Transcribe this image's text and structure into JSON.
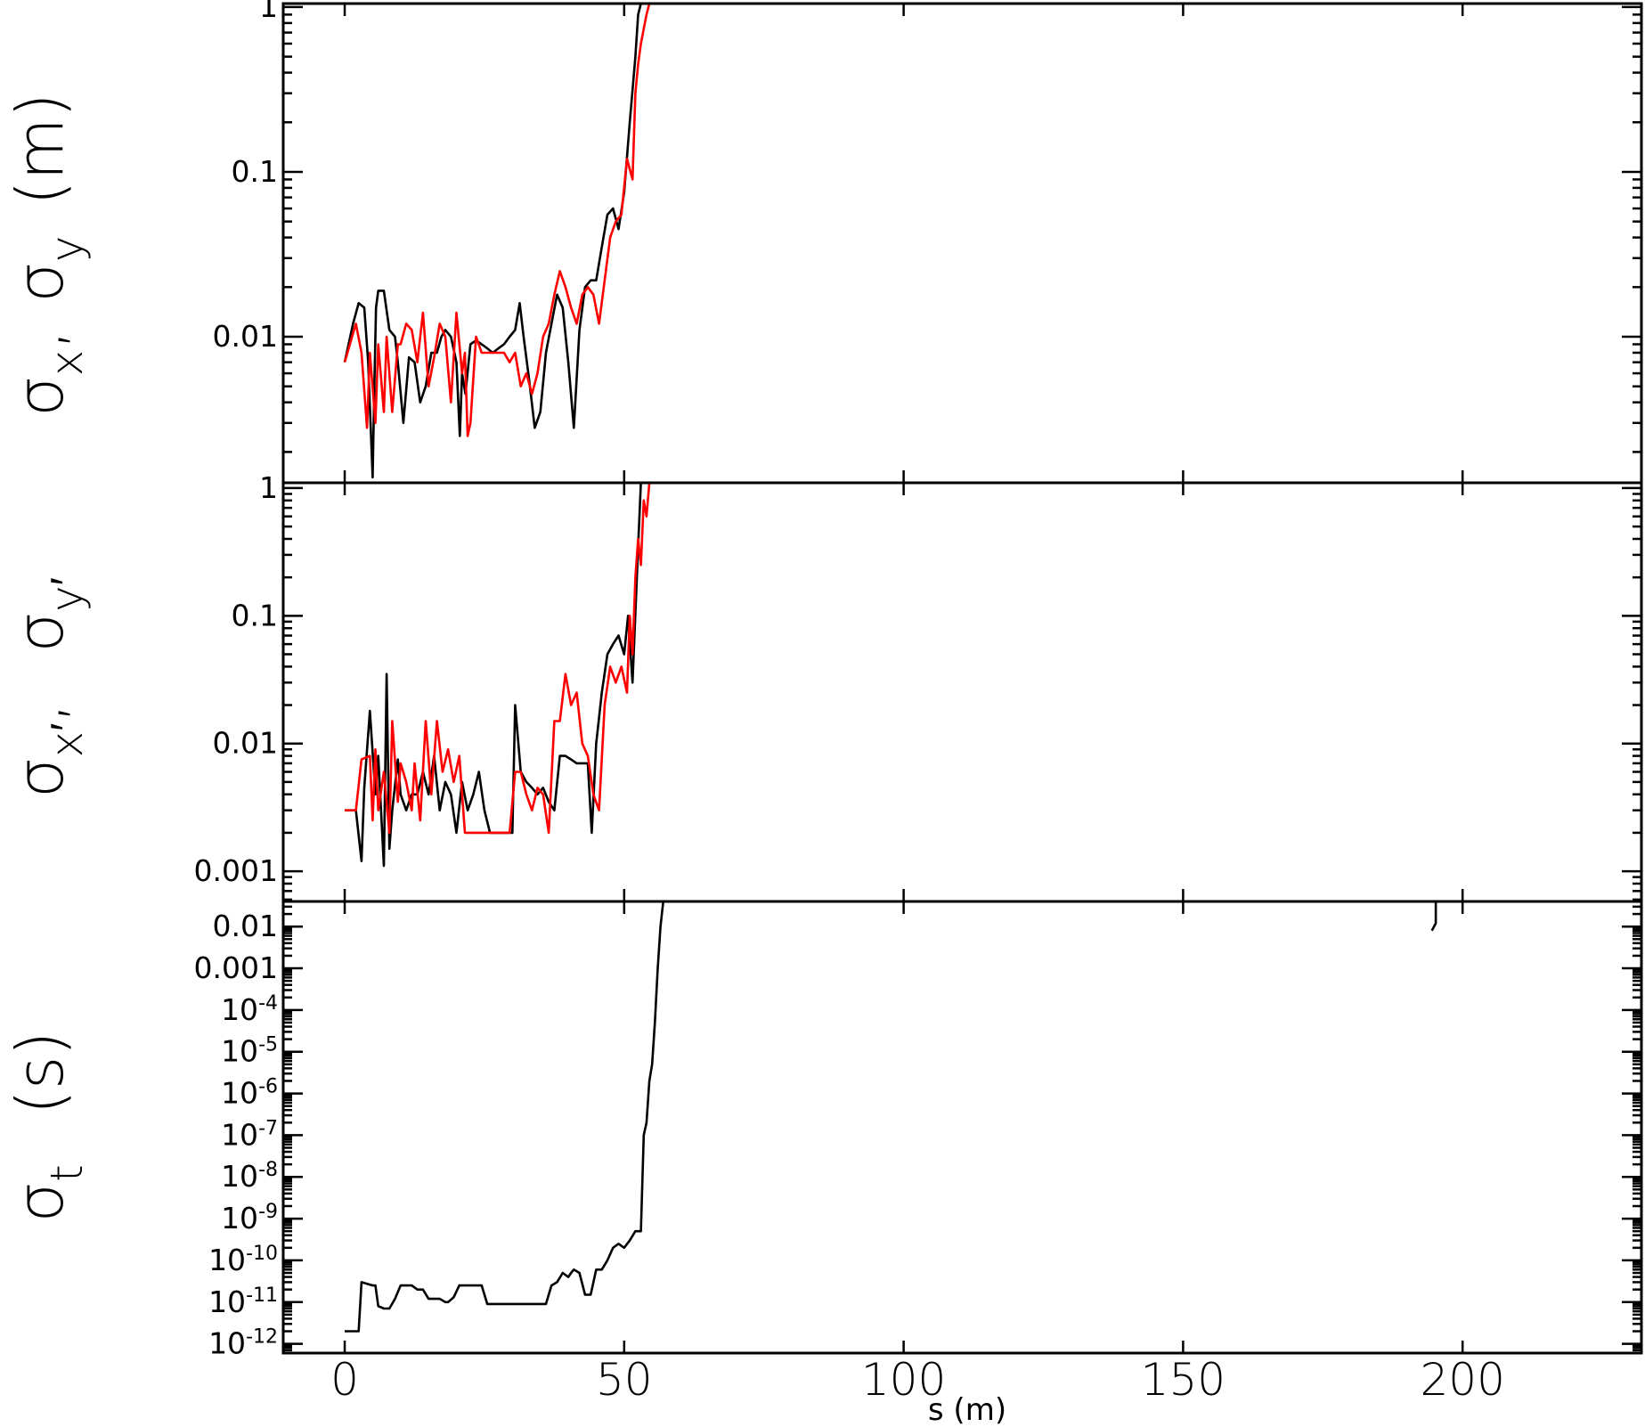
{
  "x_axis": {
    "title": "s (m)",
    "ticks": [
      0,
      50,
      100,
      150,
      200
    ],
    "tick_labels": [
      "0",
      "50",
      "100",
      "150",
      "200"
    ],
    "range": [
      -11,
      232
    ]
  },
  "colors": {
    "series_x": "#000000",
    "series_y": "#ff0000"
  },
  "chart_data": [
    {
      "type": "line",
      "panel": "top",
      "ylabel": {
        "sigma1": "σ",
        "sub1": "x",
        "sep": ",",
        "sigma2": "σ",
        "sub2": "y",
        "unit": "(m)"
      },
      "yscale": "log",
      "ylim": [
        0.0013,
        1.05
      ],
      "yticks": [
        0.01,
        0.1,
        1
      ],
      "ytick_labels": [
        "0.01",
        "0.1",
        "1"
      ],
      "series": [
        {
          "color": "#000000",
          "x": [
            0,
            1.5,
            2.5,
            3.5,
            4.2,
            5,
            5.3,
            5.6,
            6,
            7,
            8,
            9,
            9.5,
            10.5,
            11.5,
            12.5,
            13.5,
            14.5,
            15.5,
            16.5,
            17.3,
            18,
            19,
            20,
            20.6,
            21,
            21.6,
            22.5,
            23.5,
            24.5,
            25.5,
            26.5,
            27.5,
            28.5,
            29.5,
            30.5,
            31.3,
            32,
            33,
            34,
            35,
            36,
            37,
            38,
            39,
            40,
            41,
            42,
            43,
            44,
            45,
            46,
            47,
            48,
            49,
            50,
            51,
            52,
            52.5,
            53
          ],
          "y": [
            0.007,
            0.012,
            0.016,
            0.015,
            0.007,
            0.0014,
            0.005,
            0.015,
            0.019,
            0.019,
            0.011,
            0.01,
            0.007,
            0.003,
            0.0075,
            0.007,
            0.004,
            0.005,
            0.008,
            0.008,
            0.01,
            0.011,
            0.01,
            0.007,
            0.0025,
            0.006,
            0.0045,
            0.009,
            0.0095,
            0.009,
            0.0085,
            0.008,
            0.0085,
            0.009,
            0.01,
            0.011,
            0.016,
            0.01,
            0.0055,
            0.0028,
            0.0035,
            0.008,
            0.012,
            0.018,
            0.015,
            0.007,
            0.0028,
            0.011,
            0.02,
            0.022,
            0.022,
            0.035,
            0.055,
            0.06,
            0.045,
            0.075,
            0.2,
            0.5,
            0.9,
            1.05
          ]
        },
        {
          "color": "#ff0000",
          "x": [
            0,
            2,
            3,
            4,
            4.5,
            5.5,
            6,
            7,
            7.5,
            8.5,
            9.5,
            10,
            11,
            12,
            13,
            14,
            15,
            16,
            17,
            18,
            19,
            20,
            21,
            21.5,
            22,
            22.5,
            23.5,
            24.5,
            25.5,
            26.5,
            27.5,
            28.5,
            29.5,
            30.5,
            31.5,
            32.5,
            33.5,
            34.5,
            35.5,
            36.5,
            37.5,
            38.5,
            39.5,
            40.5,
            41.5,
            42.5,
            43.5,
            44.5,
            45.5,
            46.5,
            47.5,
            48.5,
            49.5,
            50.5,
            51.5,
            52,
            52.5,
            53,
            54,
            54.5
          ],
          "y": [
            0.007,
            0.012,
            0.008,
            0.0028,
            0.008,
            0.003,
            0.009,
            0.0035,
            0.01,
            0.0035,
            0.009,
            0.009,
            0.012,
            0.011,
            0.007,
            0.014,
            0.005,
            0.0075,
            0.012,
            0.01,
            0.004,
            0.014,
            0.006,
            0.008,
            0.0025,
            0.003,
            0.01,
            0.008,
            0.008,
            0.008,
            0.008,
            0.008,
            0.007,
            0.008,
            0.005,
            0.006,
            0.0045,
            0.006,
            0.01,
            0.012,
            0.018,
            0.025,
            0.02,
            0.015,
            0.012,
            0.018,
            0.02,
            0.018,
            0.012,
            0.022,
            0.04,
            0.05,
            0.055,
            0.12,
            0.09,
            0.3,
            0.45,
            0.6,
            0.9,
            1.05
          ]
        }
      ]
    },
    {
      "type": "line",
      "panel": "middle",
      "ylabel": {
        "sigma1": "σ",
        "sub1": "x′",
        "sep": ",",
        "sigma2": "σ",
        "sub2": "y′"
      },
      "yscale": "log",
      "ylim": [
        0.00058,
        1.1
      ],
      "yticks": [
        0.001,
        0.01,
        0.1,
        1
      ],
      "ytick_labels": [
        "0.001",
        "0.01",
        "0.1",
        "1"
      ],
      "series": [
        {
          "color": "#000000",
          "x": [
            0,
            2,
            3,
            3.5,
            4.5,
            5.5,
            6,
            7,
            7.5,
            8,
            8.5,
            9.5,
            10,
            11,
            12,
            13,
            14,
            15,
            16,
            17,
            18,
            19,
            20,
            21,
            22,
            23,
            24,
            25,
            26,
            27,
            28,
            29,
            30,
            30.5,
            31.5,
            32.5,
            33.5,
            34.5,
            35.5,
            36.5,
            37.5,
            38.5,
            39.5,
            40.5,
            41.5,
            42.5,
            43.5,
            44.2,
            45,
            46,
            47,
            48,
            49,
            50,
            50.7,
            51.5,
            52.5,
            53
          ],
          "y": [
            0.003,
            0.003,
            0.0012,
            0.0045,
            0.018,
            0.004,
            0.008,
            0.0011,
            0.035,
            0.0015,
            0.003,
            0.0075,
            0.004,
            0.003,
            0.004,
            0.004,
            0.006,
            0.004,
            0.008,
            0.003,
            0.005,
            0.004,
            0.002,
            0.005,
            0.003,
            0.004,
            0.006,
            0.003,
            0.002,
            0.002,
            0.002,
            0.002,
            0.002,
            0.02,
            0.006,
            0.005,
            0.0045,
            0.004,
            0.0045,
            0.0035,
            0.003,
            0.008,
            0.008,
            0.0075,
            0.007,
            0.007,
            0.007,
            0.002,
            0.01,
            0.025,
            0.05,
            0.06,
            0.07,
            0.05,
            0.1,
            0.03,
            0.35,
            1.1
          ]
        },
        {
          "color": "#ff0000",
          "x": [
            0,
            2,
            3,
            4.5,
            5,
            5.5,
            6,
            7,
            8,
            8.5,
            9.5,
            10,
            11,
            12,
            12.5,
            13.5,
            14.5,
            15.5,
            16.5,
            17.5,
            18.5,
            19.5,
            20.5,
            21.5,
            22.5,
            23.5,
            24.5,
            25.5,
            26.5,
            27.5,
            28.5,
            29.5,
            30.5,
            31.5,
            32.5,
            33.5,
            34.5,
            35.5,
            36.5,
            37.5,
            38.5,
            39.5,
            40.5,
            41.5,
            42.5,
            43.5,
            44.5,
            45.5,
            46.5,
            47.5,
            48.5,
            49.5,
            50.5,
            51,
            51.5,
            52,
            52.5,
            53,
            53.5,
            54,
            54.5
          ],
          "y": [
            0.003,
            0.003,
            0.0075,
            0.008,
            0.0025,
            0.009,
            0.003,
            0.006,
            0.002,
            0.015,
            0.0035,
            0.007,
            0.005,
            0.003,
            0.007,
            0.0025,
            0.015,
            0.004,
            0.015,
            0.006,
            0.009,
            0.005,
            0.008,
            0.002,
            0.002,
            0.002,
            0.002,
            0.002,
            0.002,
            0.002,
            0.002,
            0.002,
            0.006,
            0.006,
            0.004,
            0.003,
            0.0045,
            0.004,
            0.002,
            0.015,
            0.015,
            0.035,
            0.02,
            0.025,
            0.01,
            0.008,
            0.004,
            0.003,
            0.02,
            0.04,
            0.03,
            0.04,
            0.025,
            0.1,
            0.05,
            0.2,
            0.4,
            0.25,
            0.8,
            0.6,
            1.1
          ]
        }
      ]
    },
    {
      "type": "line",
      "panel": "bottom",
      "ylabel": {
        "sigma1": "σ",
        "sub1": "t",
        "unit": "(s)"
      },
      "yscale": "log",
      "ylim": [
        6e-13,
        0.04
      ],
      "yticks": [
        1e-12,
        1e-11,
        1e-10,
        1e-09,
        1e-08,
        1e-07,
        1e-06,
        1e-05,
        0.0001,
        0.001,
        0.01
      ],
      "ytick_labels": [
        {
          "base": "10",
          "exp": "-12"
        },
        {
          "base": "10",
          "exp": "-11"
        },
        {
          "base": "10",
          "exp": "-10"
        },
        {
          "base": "10",
          "exp": "-9"
        },
        {
          "base": "10",
          "exp": "-8"
        },
        {
          "base": "10",
          "exp": "-7"
        },
        {
          "base": "10",
          "exp": "-6"
        },
        {
          "base": "10",
          "exp": "-5"
        },
        {
          "base": "10",
          "exp": "-4"
        },
        {
          "base": "0.001",
          "exp": ""
        },
        {
          "base": "0.01",
          "exp": ""
        }
      ],
      "series": [
        {
          "color": "#000000",
          "x": [
            0,
            2.5,
            3,
            5,
            5.5,
            6,
            7,
            8,
            9,
            10,
            10.5,
            12,
            13,
            14,
            15,
            16,
            17,
            18,
            18.5,
            19.5,
            20.5,
            21.5,
            22.5,
            23.5,
            24.5,
            25.5,
            26,
            27,
            28,
            29,
            30,
            31,
            32,
            33,
            34,
            35,
            36,
            37,
            38,
            39,
            40,
            40.5,
            41,
            42,
            43,
            44,
            45,
            46,
            47,
            48,
            49,
            50,
            51,
            52,
            53,
            53.5,
            54,
            54.5,
            55,
            55.5,
            56,
            56.5,
            57
          ],
          "y": [
            2e-12,
            2e-12,
            3e-11,
            2.5e-11,
            2.5e-11,
            8e-12,
            7e-12,
            7e-12,
            1.2e-11,
            2.5e-11,
            2.5e-11,
            2.5e-11,
            2e-11,
            2e-11,
            1.2e-11,
            1.2e-11,
            1.2e-11,
            1e-11,
            1e-11,
            1.3e-11,
            2.5e-11,
            2.5e-11,
            2.5e-11,
            2.5e-11,
            2.5e-11,
            9e-12,
            9e-12,
            9e-12,
            9e-12,
            9e-12,
            9e-12,
            9e-12,
            9e-12,
            9e-12,
            9e-12,
            9e-12,
            9e-12,
            2.5e-11,
            3e-11,
            5e-11,
            4e-11,
            5e-11,
            6e-11,
            5e-11,
            1.5e-11,
            1.5e-11,
            6e-11,
            6e-11,
            1e-10,
            2e-10,
            2.5e-10,
            2e-10,
            3e-10,
            5e-10,
            5e-10,
            1e-07,
            2e-07,
            2e-06,
            5e-06,
            5e-05,
            0.001,
            0.01,
            0.04
          ]
        },
        {
          "color": "#000000",
          "x": [
            194.5,
            195.2,
            195.2,
            195.2
          ],
          "y": [
            0.008,
            0.012,
            0.02,
            0.04
          ]
        }
      ]
    }
  ]
}
